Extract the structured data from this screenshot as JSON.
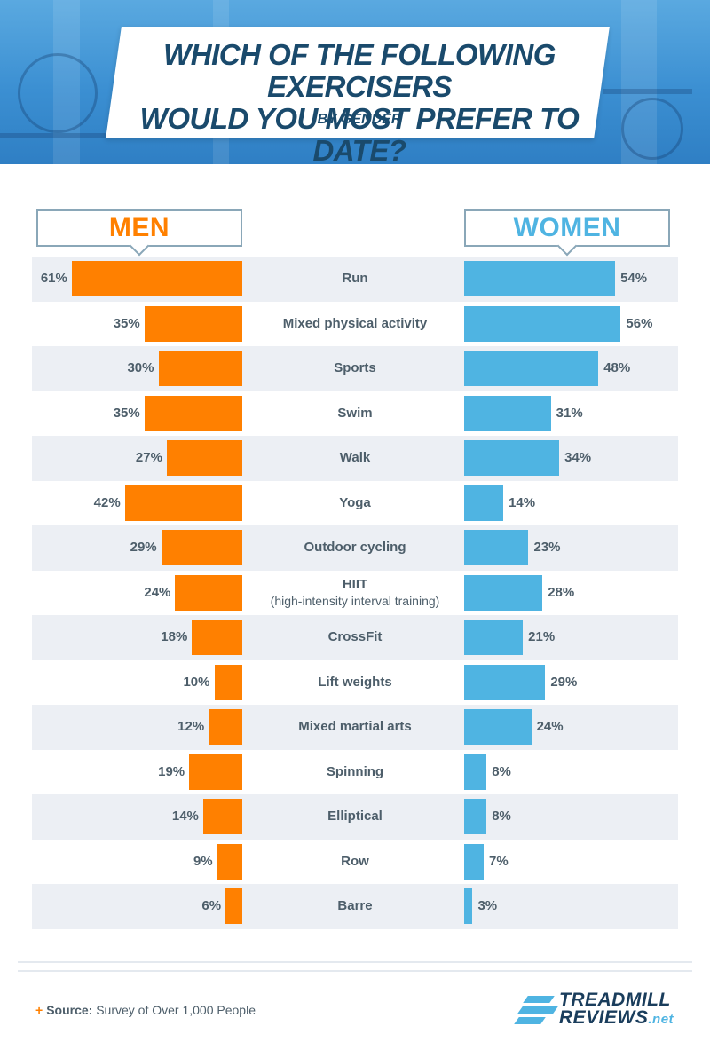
{
  "header": {
    "title_line1": "WHICH OF THE FOLLOWING EXERCISERS",
    "title_line2": "WOULD YOU MOST PREFER TO DATE?",
    "subtitle": "BY GENDER"
  },
  "legend": {
    "men": "MEN",
    "women": "WOMEN"
  },
  "colors": {
    "men": "#ff8000",
    "women": "#4fb4e2",
    "title": "#1a4a6c",
    "label": "#4d5e6a"
  },
  "chart_data": {
    "type": "bar",
    "orientation": "horizontal-butterfly",
    "title": "WHICH OF THE FOLLOWING EXERCISERS WOULD YOU MOST PREFER TO DATE?",
    "subtitle": "BY GENDER",
    "categories": [
      {
        "label": "Run"
      },
      {
        "label": "Mixed physical activity"
      },
      {
        "label": "Sports"
      },
      {
        "label": "Swim"
      },
      {
        "label": "Walk"
      },
      {
        "label": "Yoga"
      },
      {
        "label": "Outdoor cycling"
      },
      {
        "label": "HIIT",
        "sub": "(high-intensity interval training)"
      },
      {
        "label": "CrossFit"
      },
      {
        "label": "Lift weights"
      },
      {
        "label": "Mixed martial arts"
      },
      {
        "label": "Spinning"
      },
      {
        "label": "Elliptical"
      },
      {
        "label": "Row"
      },
      {
        "label": "Barre"
      }
    ],
    "series": [
      {
        "name": "MEN",
        "values": [
          61,
          35,
          30,
          35,
          27,
          42,
          29,
          24,
          18,
          10,
          12,
          19,
          14,
          9,
          6
        ]
      },
      {
        "name": "WOMEN",
        "values": [
          54,
          56,
          48,
          31,
          34,
          14,
          23,
          28,
          21,
          29,
          24,
          8,
          8,
          7,
          3
        ]
      }
    ],
    "unit": "%"
  },
  "footer": {
    "source_label": "Source:",
    "source_text": "Survey of Over 1,000 People",
    "logo_line1": "TREADMILL",
    "logo_line2": "REVIEWS",
    "logo_suffix": ".net"
  }
}
